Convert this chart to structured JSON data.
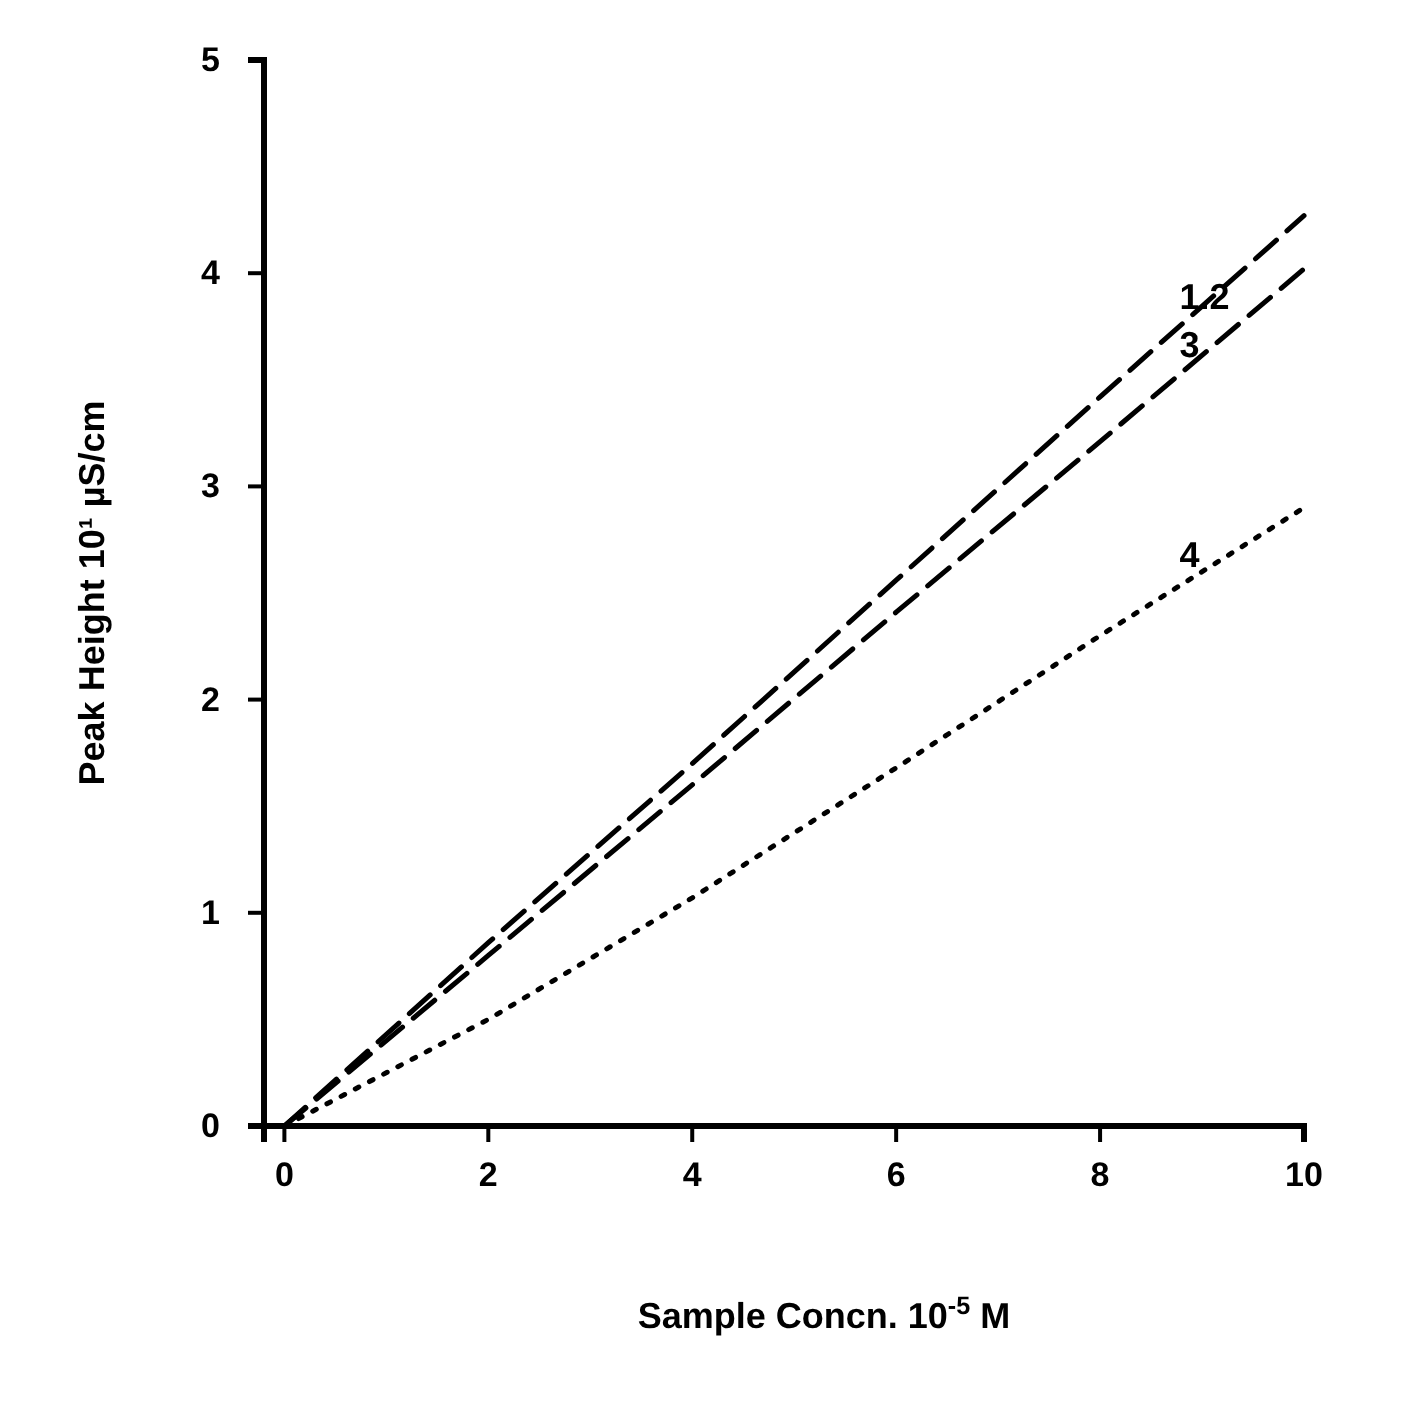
{
  "chart_data": {
    "type": "line",
    "xlabel": "Sample Concn. 10$^{-5}$ M",
    "ylabel": "Peak Height 10¹ µS/cm",
    "xlim": [
      -0.2,
      10
    ],
    "ylim": [
      0,
      5
    ],
    "xticks": [
      0,
      2,
      4,
      6,
      8,
      10
    ],
    "yticks": [
      0,
      1,
      2,
      3,
      4,
      5
    ],
    "grid": false,
    "legend": false,
    "marker": "none",
    "x": [
      0,
      2,
      4,
      6,
      8,
      10
    ],
    "series": [
      {
        "name": "1.2",
        "color": "#000000",
        "line_style": "dashed",
        "values": [
          0,
          0.86,
          1.7,
          2.56,
          3.42,
          4.27
        ]
      },
      {
        "name": "3",
        "color": "#000000",
        "line_style": "dashed",
        "values": [
          0,
          0.8,
          1.6,
          2.41,
          3.21,
          4.02
        ]
      },
      {
        "name": "4",
        "color": "#000000",
        "line_style": "dotted",
        "values": [
          0,
          0.5,
          1.07,
          1.68,
          2.3,
          2.9
        ]
      }
    ]
  }
}
